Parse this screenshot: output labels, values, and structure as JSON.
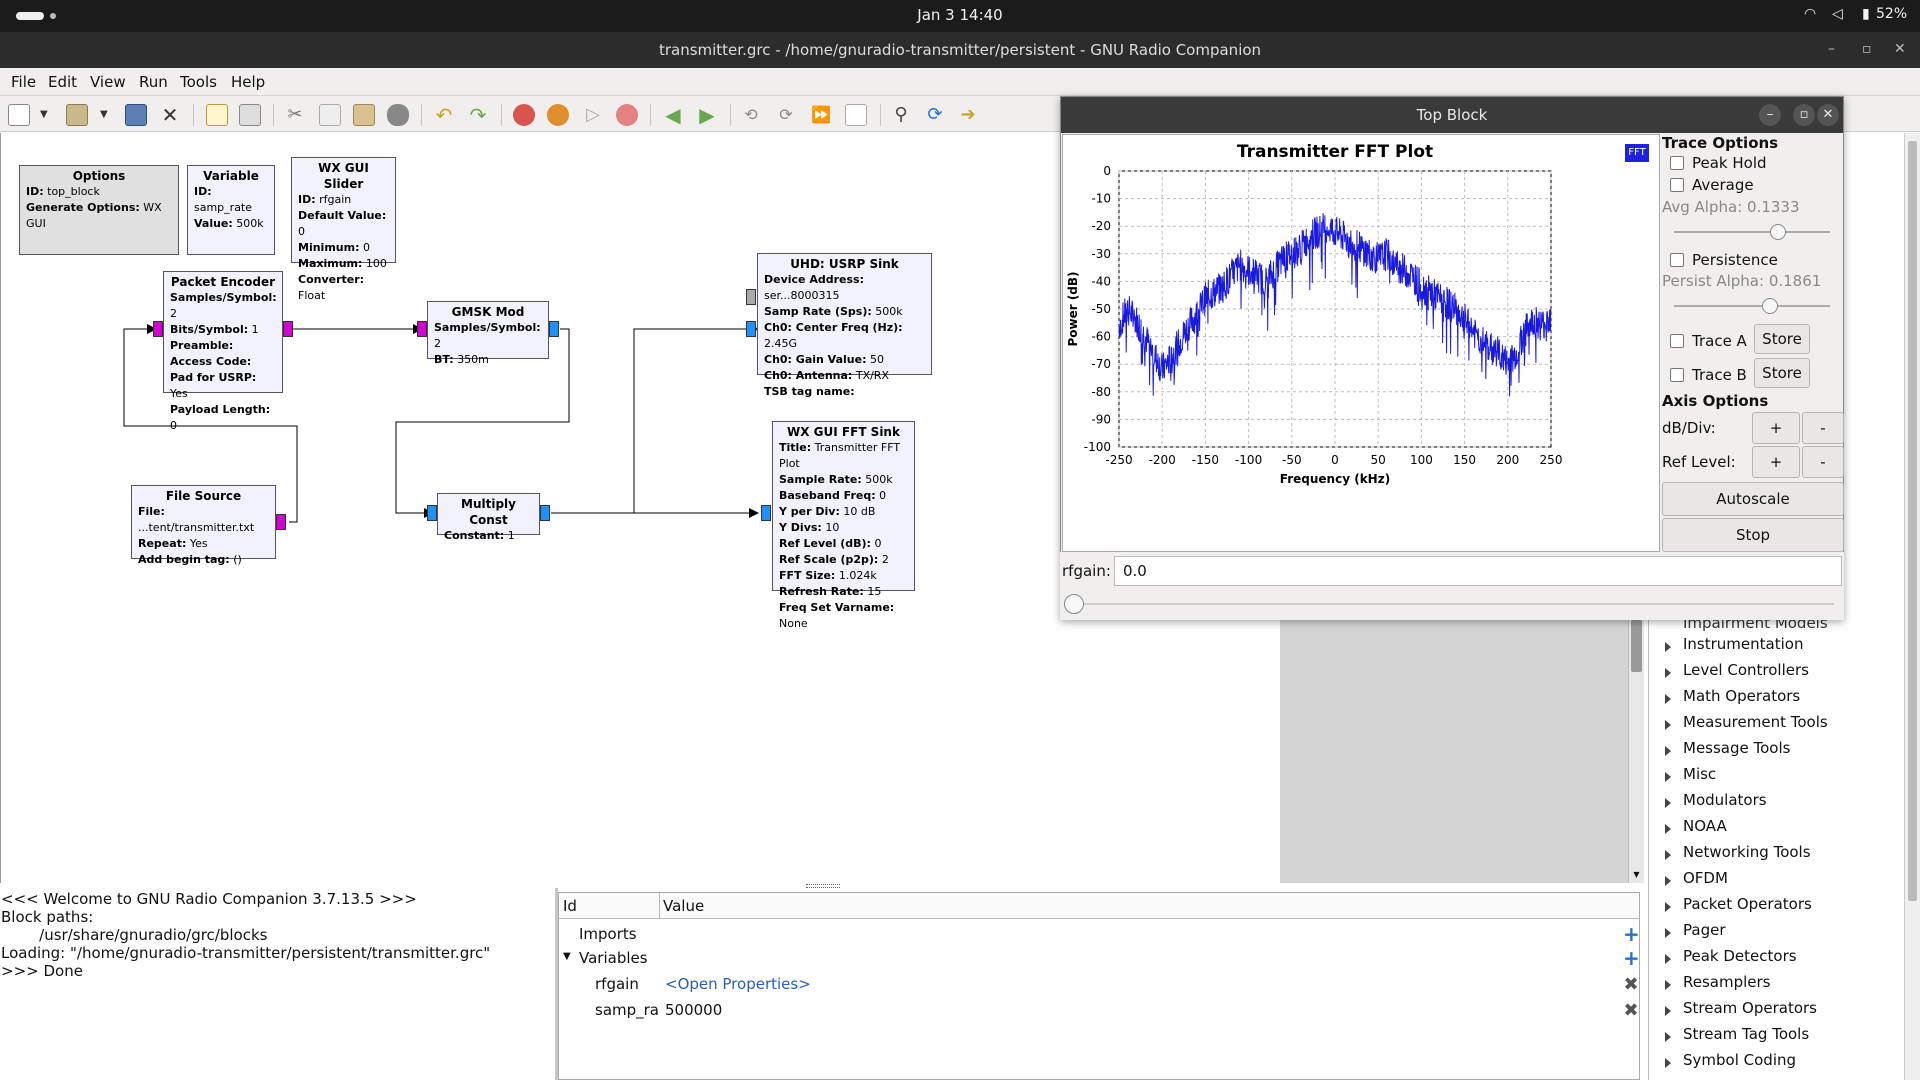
{
  "topbar": {
    "clock": "Jan 3  14:40",
    "battery": "52%"
  },
  "window": {
    "title": "transmitter.grc - /home/gnuradio-transmitter/persistent - GNU Radio Companion"
  },
  "menu": [
    "File",
    "Edit",
    "View",
    "Run",
    "Tools",
    "Help"
  ],
  "toolbar_icons": [
    "new-icon",
    "dropdown-icon",
    "open-icon",
    "dropdown-icon",
    "save-icon",
    "close-icon",
    "properties-icon",
    "print-icon",
    "cut-icon",
    "copy-icon",
    "paste-icon",
    "delete-icon",
    "undo-icon",
    "redo-icon",
    "disable-icon",
    "bypass-icon",
    "run-icon",
    "stop-icon",
    "back-icon",
    "forward-icon",
    "rotate-ccw-icon",
    "rotate-cw-icon",
    "skip-icon",
    "generate-icon",
    "find-icon",
    "reload-icon",
    "execute-icon"
  ],
  "blocks": {
    "options": {
      "title": "Options",
      "rows": [
        [
          "ID:",
          "top_block"
        ],
        [
          "Generate Options:",
          "WX GUI"
        ]
      ]
    },
    "variable": {
      "title": "Variable",
      "rows": [
        [
          "ID:",
          "samp_rate"
        ],
        [
          "Value:",
          "500k"
        ]
      ]
    },
    "slider": {
      "title": "WX GUI Slider",
      "rows": [
        [
          "ID:",
          "rfgain"
        ],
        [
          "Default Value:",
          "0"
        ],
        [
          "Minimum:",
          "0"
        ],
        [
          "Maximum:",
          "100"
        ],
        [
          "Converter:",
          "Float"
        ]
      ]
    },
    "encoder": {
      "title": "Packet Encoder",
      "rows": [
        [
          "Samples/Symbol:",
          "2"
        ],
        [
          "Bits/Symbol:",
          "1"
        ],
        [
          "Preamble:",
          ""
        ],
        [
          "Access Code:",
          ""
        ],
        [
          "Pad for USRP:",
          "Yes"
        ],
        [
          "Payload Length:",
          "0"
        ]
      ]
    },
    "gmsk": {
      "title": "GMSK Mod",
      "rows": [
        [
          "Samples/Symbol:",
          "2"
        ],
        [
          "BT:",
          "350m"
        ]
      ]
    },
    "usrp": {
      "title": "UHD: USRP Sink",
      "rows": [
        [
          "Device Address:",
          "ser...8000315"
        ],
        [
          "Samp Rate (Sps):",
          "500k"
        ],
        [
          "Ch0: Center Freq (Hz):",
          "2.45G"
        ],
        [
          "Ch0: Gain Value:",
          "50"
        ],
        [
          "Ch0: Antenna:",
          "TX/RX"
        ],
        [
          "TSB tag name:",
          ""
        ]
      ]
    },
    "filesrc": {
      "title": "File Source",
      "rows": [
        [
          "File:",
          "...tent/transmitter.txt"
        ],
        [
          "Repeat:",
          "Yes"
        ],
        [
          "Add begin tag:",
          "()"
        ]
      ]
    },
    "mult": {
      "title": "Multiply Const",
      "rows": [
        [
          "Constant:",
          "1"
        ]
      ]
    },
    "fft": {
      "title": "WX GUI FFT Sink",
      "rows": [
        [
          "Title:",
          "Transmitter FFT Plot"
        ],
        [
          "Sample Rate:",
          "500k"
        ],
        [
          "Baseband Freq:",
          "0"
        ],
        [
          "Y per Div:",
          "10 dB"
        ],
        [
          "Y Divs:",
          "10"
        ],
        [
          "Ref Level (dB):",
          "0"
        ],
        [
          "Ref Scale (p2p):",
          "2"
        ],
        [
          "FFT Size:",
          "1.024k"
        ],
        [
          "Refresh Rate:",
          "15"
        ],
        [
          "Freq Set Varname:",
          "None"
        ]
      ]
    }
  },
  "console": [
    "<<< Welcome to GNU Radio Companion 3.7.13.5 >>>",
    "",
    "Block paths:",
    "        /usr/share/gnuradio/grc/blocks",
    "",
    "Loading: \"/home/gnuradio-transmitter/persistent/transmitter.grc\"",
    ">>> Done"
  ],
  "vars_panel": {
    "col_id": "Id",
    "col_value": "Value",
    "imports": "Imports",
    "variables": "Variables",
    "rows": [
      {
        "id": "rfgain",
        "value": "<Open Properties>"
      },
      {
        "id": "samp_ra",
        "value": "500000"
      }
    ]
  },
  "library": [
    "Impairment Models",
    "Instrumentation",
    "Level Controllers",
    "Math Operators",
    "Measurement Tools",
    "Message Tools",
    "Misc",
    "Modulators",
    "NOAA",
    "Networking Tools",
    "OFDM",
    "Packet Operators",
    "Pager",
    "Peak Detectors",
    "Resamplers",
    "Stream Operators",
    "Stream Tag Tools",
    "Symbol Coding"
  ],
  "topblock": {
    "title": "Top Block",
    "fft_badge": "FFT",
    "trace": {
      "header": "Trace Options",
      "peak_hold": "Peak Hold",
      "average": "Average",
      "avg_alpha": "Avg Alpha: 0.1333",
      "persistence": "Persistence",
      "persist_alpha": "Persist Alpha: 0.1861",
      "trace_a": "Trace A",
      "trace_b": "Trace B",
      "store": "Store",
      "axis_header": "Axis Options",
      "db_div": "dB/Div:",
      "ref_level": "Ref Level:",
      "plus": "+",
      "minus": "-",
      "autoscale": "Autoscale",
      "stop": "Stop"
    },
    "rfgain_label": "rfgain:",
    "rfgain_value": "0.0"
  },
  "chart_data": {
    "type": "line",
    "title": "Transmitter FFT Plot",
    "xlabel": "Frequency (kHz)",
    "ylabel": "Power (dB)",
    "xlim": [
      -250,
      250
    ],
    "ylim": [
      -100,
      0
    ],
    "xticks": [
      -250,
      -200,
      -150,
      -100,
      -50,
      0,
      50,
      100,
      150,
      200,
      250
    ],
    "yticks": [
      0,
      -10,
      -20,
      -30,
      -40,
      -50,
      -60,
      -70,
      -80,
      -90,
      -100
    ],
    "grid": true,
    "series": [
      {
        "color": "#1a1adf",
        "x": [
          -250,
          -240,
          -230,
          -220,
          -210,
          -200,
          -190,
          -180,
          -170,
          -160,
          -150,
          -140,
          -130,
          -120,
          -110,
          -100,
          -90,
          -80,
          -70,
          -60,
          -50,
          -40,
          -30,
          -20,
          -10,
          0,
          10,
          20,
          30,
          40,
          50,
          60,
          70,
          80,
          90,
          100,
          110,
          120,
          130,
          140,
          150,
          160,
          170,
          180,
          190,
          200,
          210,
          220,
          230,
          240,
          250
        ],
        "y": [
          -56,
          -50,
          -54,
          -60,
          -66,
          -72,
          -68,
          -62,
          -56,
          -52,
          -46,
          -44,
          -42,
          -38,
          -34,
          -36,
          -38,
          -40,
          -36,
          -32,
          -30,
          -28,
          -24,
          -22,
          -20,
          -22,
          -24,
          -26,
          -28,
          -30,
          -32,
          -30,
          -34,
          -36,
          -38,
          -42,
          -44,
          -46,
          -48,
          -50,
          -54,
          -58,
          -62,
          -64,
          -66,
          -70,
          -66,
          -58,
          -54,
          -56,
          -52
        ]
      }
    ]
  }
}
